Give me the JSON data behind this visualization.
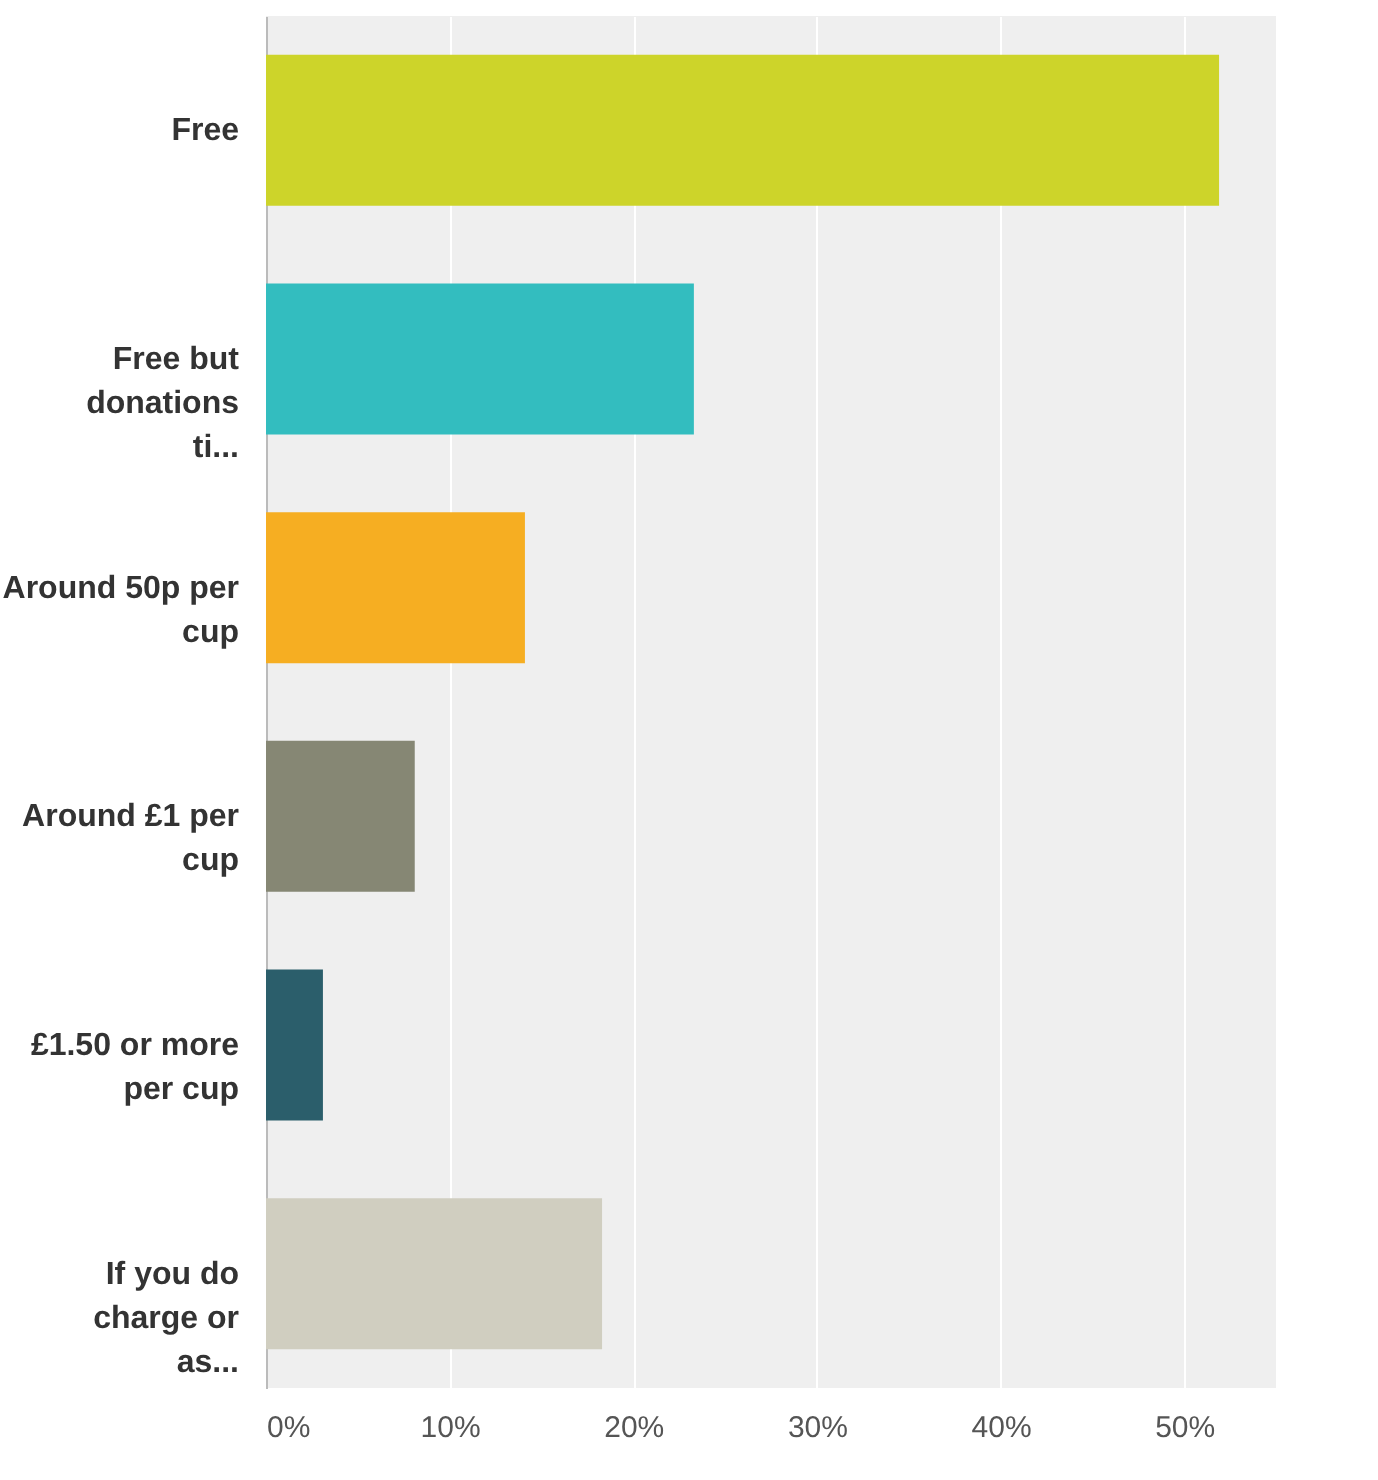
{
  "chart_data": {
    "type": "bar",
    "orientation": "horizontal",
    "categories": [
      "Free",
      "Free but donations ti...",
      "Around 50p per cup",
      "Around £1 per cup",
      "£1.50 or more per cup",
      "If you do charge or as..."
    ],
    "values": [
      51.9,
      23.3,
      14.1,
      8.1,
      3.1,
      18.3
    ],
    "colors": [
      "#cdd42a",
      "#33bdbf",
      "#f6ae22",
      "#868774",
      "#2b5e6b",
      "#d0cec0"
    ],
    "xlim": [
      0,
      55
    ],
    "xticks": [
      {
        "value": 0,
        "label": "0%"
      },
      {
        "value": 10,
        "label": "10%"
      },
      {
        "value": 20,
        "label": "20%"
      },
      {
        "value": 30,
        "label": "30%"
      },
      {
        "value": 40,
        "label": "40%"
      },
      {
        "value": 50,
        "label": "50%"
      }
    ],
    "grid": "x"
  }
}
